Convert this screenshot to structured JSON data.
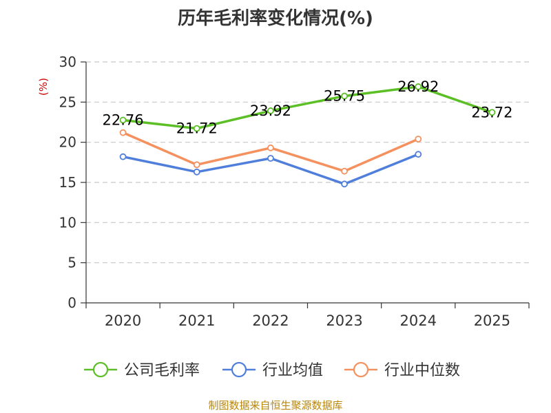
{
  "chart_data": {
    "type": "line",
    "title": "历年毛利率变化情况(%)",
    "ylabel": "(%)",
    "xlabel": "",
    "categories": [
      "2020",
      "2021",
      "2022",
      "2023",
      "2024",
      "2025"
    ],
    "ylim": [
      0,
      30
    ],
    "yticks": [
      0,
      5,
      10,
      15,
      20,
      25,
      30
    ],
    "grid": true,
    "legend_position": "bottom",
    "series": [
      {
        "name": "公司毛利率",
        "color": "#5cbf26",
        "values": [
          22.76,
          21.72,
          23.92,
          25.75,
          26.92,
          23.72
        ],
        "show_labels": true
      },
      {
        "name": "行业均值",
        "color": "#4f7fdb",
        "values": [
          18.2,
          16.3,
          18.0,
          14.8,
          18.5,
          null
        ],
        "show_labels": false
      },
      {
        "name": "行业中位数",
        "color": "#f4915e",
        "values": [
          21.2,
          17.2,
          19.3,
          16.4,
          20.4,
          null
        ],
        "show_labels": false
      }
    ]
  },
  "source_text": "制图数据来自恒生聚源数据库"
}
